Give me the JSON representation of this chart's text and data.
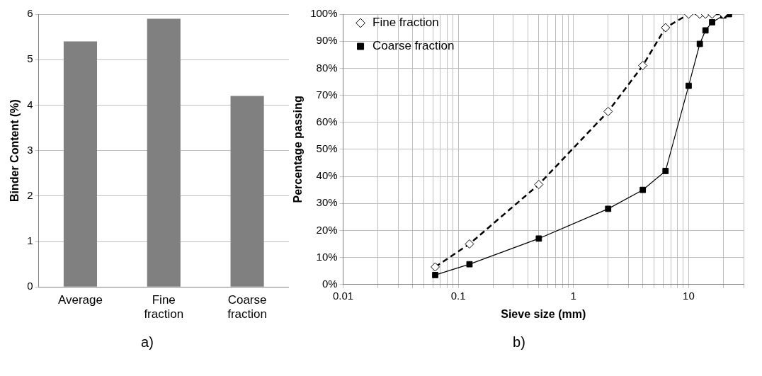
{
  "chart_data": [
    {
      "type": "bar",
      "ylabel": "Binder Content (%)",
      "categories": [
        "Average",
        "Fine fraction",
        "Coarse fraction"
      ],
      "values": [
        5.4,
        5.9,
        4.2
      ],
      "color": "#808080",
      "ylim": [
        0,
        6
      ],
      "yticks": [
        0,
        1,
        2,
        3,
        4,
        5,
        6
      ],
      "grid": "y",
      "annotations": [
        "a)"
      ]
    },
    {
      "type": "line",
      "xlabel": "Sieve size (mm)",
      "ylabel": "Percentage passing",
      "log": "x",
      "xlim": [
        0.01,
        30
      ],
      "xticks": [
        0.01,
        {
          "value": 0.02,
          "label": null
        },
        {
          "value": 0.03,
          "label": null
        },
        {
          "value": 0.04,
          "label": null
        },
        {
          "value": 0.05,
          "label": null
        },
        {
          "value": 0.06,
          "label": null
        },
        {
          "value": 0.07,
          "label": null
        },
        {
          "value": 0.08,
          "label": null
        },
        {
          "value": 0.09,
          "label": null
        },
        0.1,
        {
          "value": 0.2,
          "label": null
        },
        {
          "value": 0.3,
          "label": null
        },
        {
          "value": 0.4,
          "label": null
        },
        {
          "value": 0.5,
          "label": null
        },
        {
          "value": 0.6,
          "label": null
        },
        {
          "value": 0.7,
          "label": null
        },
        {
          "value": 0.8,
          "label": null
        },
        {
          "value": 0.9,
          "label": null
        },
        1,
        {
          "value": 2,
          "label": null
        },
        {
          "value": 3,
          "label": null
        },
        {
          "value": 4,
          "label": null
        },
        {
          "value": 5,
          "label": null
        },
        {
          "value": 6,
          "label": null
        },
        {
          "value": 7,
          "label": null
        },
        {
          "value": 8,
          "label": null
        },
        {
          "value": 9,
          "label": null
        },
        10,
        {
          "value": 20,
          "label": null
        },
        {
          "value": 30,
          "label": null
        }
      ],
      "ylim": [
        0,
        100
      ],
      "yticks": [
        {
          "value": 0,
          "label": "0%"
        },
        {
          "value": 10,
          "label": "10%"
        },
        {
          "value": 20,
          "label": "20%"
        },
        {
          "value": 30,
          "label": "30%"
        },
        {
          "value": 40,
          "label": "40%"
        },
        {
          "value": 50,
          "label": "50%"
        },
        {
          "value": 60,
          "label": "60%"
        },
        {
          "value": 70,
          "label": "70%"
        },
        {
          "value": 80,
          "label": "80%"
        },
        {
          "value": 90,
          "label": "90%"
        },
        {
          "value": 100,
          "label": "100%"
        }
      ],
      "grid": true,
      "legend": "top left",
      "annotations": [
        "b)"
      ],
      "x": [
        0.063,
        0.125,
        0.5,
        2,
        4,
        6.3,
        10,
        12.5,
        14,
        16,
        20,
        22.4
      ],
      "series": [
        {
          "name": "Fine fraction",
          "color": "#000000",
          "marker": "diamond",
          "line_style": "dashed",
          "values": [
            6.5,
            15,
            37,
            64,
            81,
            95,
            100,
            100,
            100,
            100,
            100,
            null
          ]
        },
        {
          "name": "Coarse fraction",
          "color": "#000000",
          "marker": "square",
          "line_style": "solid",
          "values": [
            3.5,
            7.5,
            17,
            28,
            35,
            42,
            73.5,
            89,
            94,
            97,
            99.5,
            100
          ]
        }
      ]
    }
  ]
}
